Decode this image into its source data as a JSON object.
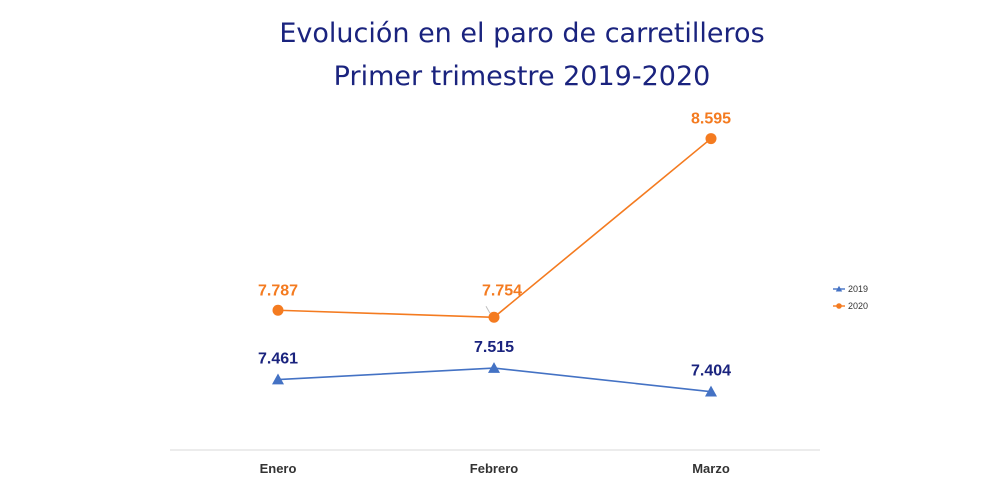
{
  "chart_data": {
    "type": "line",
    "title": "Evolución en el paro de carretilleros",
    "subtitle": "Primer trimestre 2019-2020",
    "categories": [
      "Enero",
      "Febrero",
      "Marzo"
    ],
    "series": [
      {
        "name": "2019",
        "values": [
          7461,
          7515,
          7404
        ],
        "labels": [
          "7.461",
          "7.515",
          "7.404"
        ],
        "color": "#4472c4",
        "label_color": "#1a237e",
        "marker": "triangle"
      },
      {
        "name": "2020",
        "values": [
          7787,
          7754,
          8595
        ],
        "labels": [
          "7.787",
          "7.754",
          "8.595"
        ],
        "color": "#f47b20",
        "label_color": "#f47b20",
        "marker": "circle"
      }
    ],
    "ylim": [
      6800,
      8800
    ],
    "grid": false,
    "legend_position": "right"
  }
}
